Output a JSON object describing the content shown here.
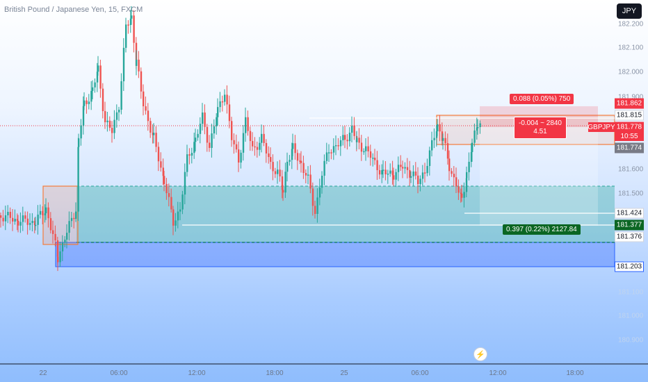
{
  "header": {
    "title": "British Pound / Japanese Yen, 15, FXCM",
    "currency_badge": "JPY"
  },
  "price_axis": {
    "ticks": [
      "182.200",
      "182.100",
      "182.000",
      "181.900",
      "181.600",
      "181.500",
      "181.100",
      "181.000",
      "180.900"
    ],
    "ticks_faint": [
      "181.100",
      "181.000",
      "180.900"
    ]
  },
  "time_axis": {
    "ticks": [
      "22",
      "06:00",
      "12:00",
      "18:00",
      "25",
      "06:00",
      "12:00",
      "18:00"
    ]
  },
  "price_labels": {
    "p181862": "181.862",
    "p181815": "181.815",
    "p181778": "181.778",
    "p181774": "181.774",
    "p181424": "181.424",
    "p181377": "181.377",
    "p181376": "181.376",
    "p181203": "181.203"
  },
  "symbol_badge": "GBPJPY",
  "countdown": "10:55",
  "risk_reward": {
    "target_label": "0.088 (0.05%) 750",
    "middle_line1": "-0.004 ~ 2840",
    "middle_line2": "4.51",
    "stop_label": "0.397 (0.22%) 2127.84"
  },
  "colors": {
    "bull": "#26a69a",
    "bear": "#ef5350",
    "zone_green": "#2e9e89",
    "zone_blue": "#2962ff",
    "zone_orange": "#f57c3b",
    "label_red": "#f23645",
    "label_green": "#0b6623"
  },
  "icons": {
    "replay": "lightning-bolt-icon"
  }
}
